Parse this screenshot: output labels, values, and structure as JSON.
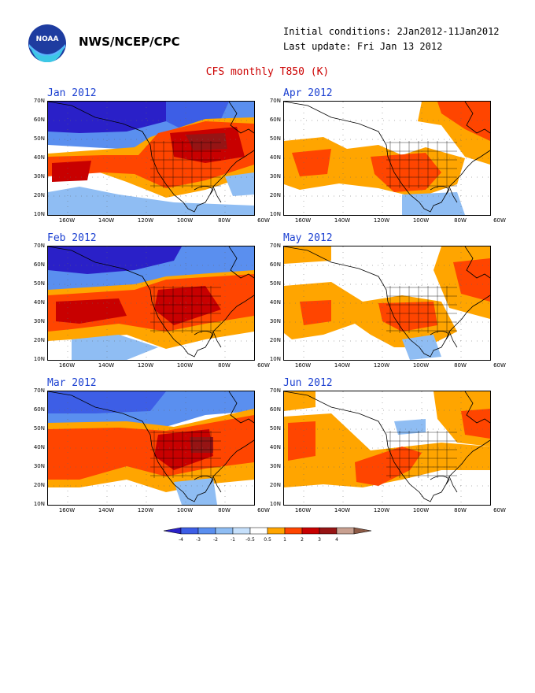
{
  "header": {
    "org": "NWS/NCEP/CPC",
    "initial_conditions": "Initial conditions: 2Jan2012-11Jan2012",
    "last_update": "Last update: Fri Jan 13 2012",
    "title": "CFS monthly T850 (K)",
    "logo_icon": "noaa-logo-icon"
  },
  "axes": {
    "lat_labels": [
      "70N",
      "60N",
      "50N",
      "40N",
      "30N",
      "20N",
      "10N"
    ],
    "lon_labels": [
      "160W",
      "140W",
      "120W",
      "100W",
      "80W",
      "60W"
    ]
  },
  "panels": [
    {
      "title": "Jan 2012",
      "pattern": "jan"
    },
    {
      "title": "Apr 2012",
      "pattern": "apr"
    },
    {
      "title": "Feb 2012",
      "pattern": "feb"
    },
    {
      "title": "May 2012",
      "pattern": "may"
    },
    {
      "title": "Mar 2012",
      "pattern": "mar"
    },
    {
      "title": "Jun 2012",
      "pattern": "jun"
    }
  ],
  "colorbar": {
    "labels": [
      "-4",
      "-3",
      "-2",
      "-1",
      "-0.5",
      "0.5",
      "1",
      "2",
      "3",
      "4"
    ],
    "colors": [
      "#2a20c8",
      "#3d5ee6",
      "#5a8fef",
      "#8fbdf3",
      "#c6e0fb",
      "#ffffff",
      "#ffa500",
      "#ff4500",
      "#c80000",
      "#961414",
      "#c8a090",
      "#8c5a46"
    ]
  }
}
